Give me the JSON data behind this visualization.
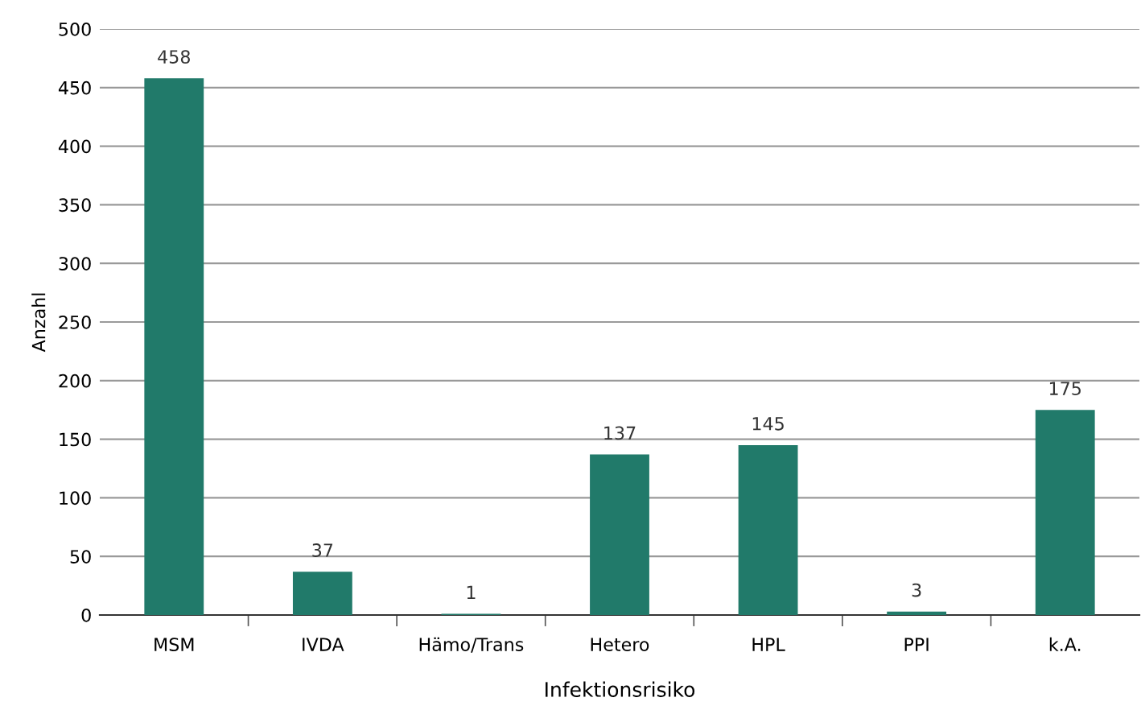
{
  "chart_data": {
    "type": "bar",
    "xlabel": "Infektionsrisiko",
    "ylabel": "Anzahl",
    "categories": [
      "MSM",
      "IVDA",
      "Hämo/Trans",
      "Hetero",
      "HPL",
      "PPI",
      "k.A."
    ],
    "values": [
      458,
      37,
      1,
      137,
      145,
      3,
      175
    ],
    "color": "#217a6a",
    "ylim": [
      0,
      500
    ],
    "yticks": [
      0,
      50,
      100,
      150,
      200,
      250,
      300,
      350,
      400,
      450,
      500
    ],
    "grid": "y",
    "data_labels": true
  }
}
